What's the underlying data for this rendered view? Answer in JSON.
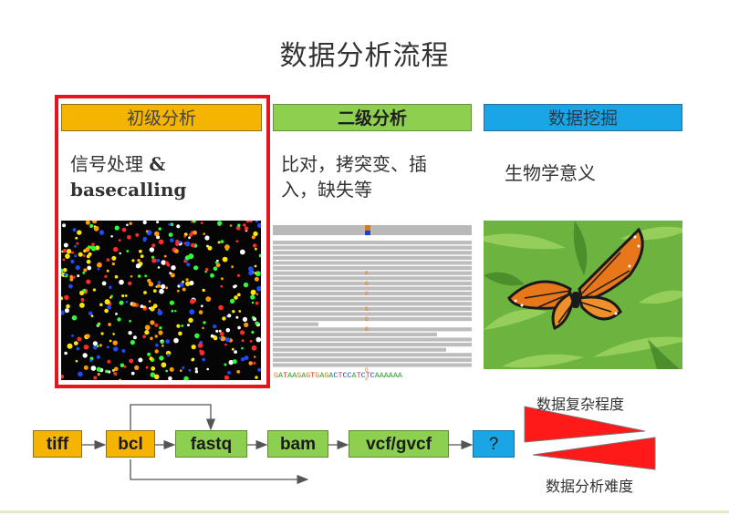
{
  "title": "数据分析流程",
  "columns": [
    {
      "header": "初级分析",
      "desc_line1": "信号处理 ",
      "desc_amp": "&",
      "desc_line2": "basecalling"
    },
    {
      "header": "二级分析",
      "desc_line1": "比对，拷突变、插",
      "desc_line2": "入，缺失等"
    },
    {
      "header": "数据挖掘",
      "desc_line1": "生物学意义"
    }
  ],
  "alignment": {
    "bases": "GATAAGAGTGAGACTCCATCTCAAAAAA",
    "mismatch_letter": "G"
  },
  "flow": {
    "steps": [
      "tiff",
      "bcl",
      "fastq",
      "bam",
      "vcf/gvcf",
      "?"
    ]
  },
  "complexity_label": "数据复杂程度",
  "difficulty_label": "数据分析难度",
  "colors": {
    "primary": "#f5b400",
    "secondary": "#8dcf4f",
    "mining": "#1aa6e6",
    "highlight": "#e8141b",
    "triangle": "#ff1a1a"
  }
}
